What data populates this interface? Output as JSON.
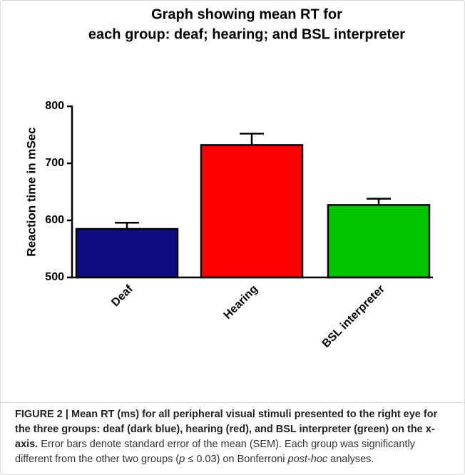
{
  "chart_data": {
    "type": "bar",
    "title": [
      "Graph showing mean RT for",
      "each group: deaf; hearing; and BSL interpreter"
    ],
    "ylabel": "Reaction time in mSec",
    "categories": [
      "Deaf",
      "Hearing",
      "BSL interpreter"
    ],
    "values": [
      585,
      732,
      627
    ],
    "errors": [
      11,
      20,
      11
    ],
    "colors": [
      "#0d0d80",
      "#ff0000",
      "#00c400"
    ],
    "ylim": [
      500,
      800
    ],
    "yticks": [
      500,
      600,
      700,
      800
    ]
  },
  "caption": {
    "parts": [
      {
        "style": "bold",
        "text": "FIGURE 2 | Mean RT (ms) for all peripheral visual stimuli presented to the right eye for the three groups: deaf (dark blue), hearing (red), and BSL interpreter (green) on the x-axis."
      },
      {
        "style": "normal",
        "text": " Error bars denote standard error of the mean (SEM). Each group was significantly different from the other two groups ("
      },
      {
        "style": "italic",
        "text": "p"
      },
      {
        "style": "normal",
        "text": " ≤ 0.03) on Bonferroni "
      },
      {
        "style": "italic",
        "text": "post-hoc"
      },
      {
        "style": "normal",
        "text": " analyses."
      }
    ]
  }
}
